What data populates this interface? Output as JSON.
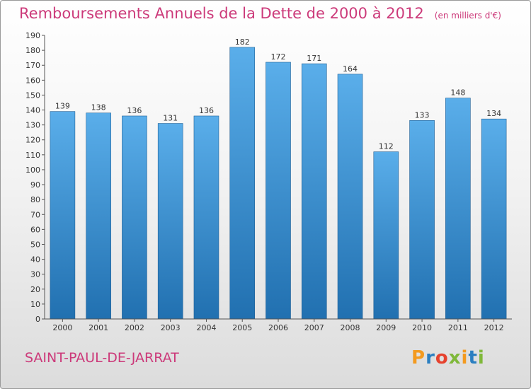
{
  "header": {
    "title": "Remboursements Annuels de la Dette de 2000 à 2012",
    "subtitle": "(en milliers d'€)"
  },
  "footer": {
    "town": "SAINT-PAUL-DE-JARRAT",
    "logo": "Proxiti"
  },
  "colors": {
    "title": "#cc3a7a",
    "bar_light": "#5aaeea",
    "bar_dark": "#2170b0"
  },
  "chart_data": {
    "type": "bar",
    "title": "Remboursements Annuels de la Dette de 2000 à 2012",
    "subtitle": "(en milliers d'€)",
    "categories": [
      "2000",
      "2001",
      "2002",
      "2003",
      "2004",
      "2005",
      "2006",
      "2007",
      "2008",
      "2009",
      "2010",
      "2011",
      "2012"
    ],
    "values": [
      139,
      138,
      136,
      131,
      136,
      182,
      172,
      171,
      164,
      112,
      133,
      148,
      134
    ],
    "ylim": [
      0,
      190
    ],
    "ytick_step": 10,
    "grid": false,
    "legend": "none"
  }
}
